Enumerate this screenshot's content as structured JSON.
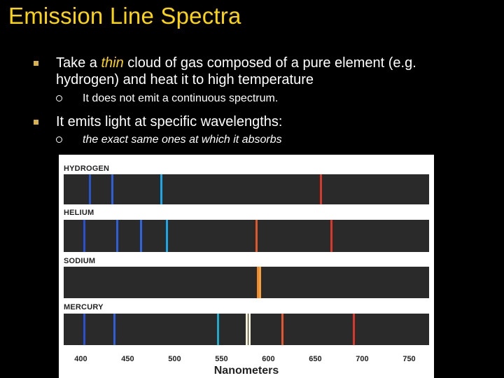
{
  "slide": {
    "title": "Emission Line Spectra",
    "bullets": [
      {
        "pre": "Take a ",
        "emph": "thin",
        "post": " cloud of gas composed of a pure element (e.g. hydrogen) and heat it to high temperature",
        "sub": "It does not emit a continuous spectrum."
      },
      {
        "text": " It emits light at specific wavelengths:",
        "sub": "the exact same ones at which it absorbs"
      }
    ]
  },
  "chart_data": {
    "type": "emission-spectra",
    "xlabel": "Nanometers",
    "xlim": [
      390,
      772
    ],
    "ticks": [
      400,
      450,
      500,
      550,
      600,
      650,
      700,
      750
    ],
    "series": [
      {
        "name": "HYDROGEN",
        "lines": [
          {
            "nm": 410,
            "color": "#2a55c8"
          },
          {
            "nm": 434,
            "color": "#2f5fd8"
          },
          {
            "nm": 486,
            "color": "#1aa6e8"
          },
          {
            "nm": 656,
            "color": "#d8382a"
          }
        ]
      },
      {
        "name": "HELIUM",
        "lines": [
          {
            "nm": 404,
            "color": "#2a4fd0"
          },
          {
            "nm": 439,
            "color": "#2f5fd8"
          },
          {
            "nm": 464,
            "color": "#2f64e0"
          },
          {
            "nm": 492,
            "color": "#1aa6e8"
          },
          {
            "nm": 587,
            "color": "#e0582a"
          },
          {
            "nm": 667,
            "color": "#d8382a"
          }
        ]
      },
      {
        "name": "SODIUM",
        "lines": [
          {
            "nm": 589,
            "color": "#f08a2a"
          },
          {
            "nm": 591,
            "color": "#f2a040"
          }
        ]
      },
      {
        "name": "MERCURY",
        "lines": [
          {
            "nm": 404,
            "color": "#2a4fd0"
          },
          {
            "nm": 436,
            "color": "#2f5fd8"
          },
          {
            "nm": 546,
            "color": "#21a9c9"
          },
          {
            "nm": 577,
            "color": "#f4f0d8"
          },
          {
            "nm": 580,
            "color": "#f4f0d8"
          },
          {
            "nm": 615,
            "color": "#e25630"
          },
          {
            "nm": 691,
            "color": "#d8382a"
          }
        ]
      }
    ]
  }
}
